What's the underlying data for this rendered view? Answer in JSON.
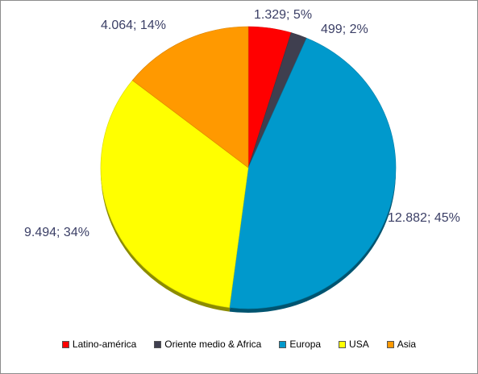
{
  "chart_data": {
    "type": "pie",
    "title": "",
    "legend_position": "bottom",
    "slices": [
      {
        "name": "Latino-américa",
        "value": 1329,
        "value_label": "1.329",
        "percent_label": "5%",
        "color": "#ff0000"
      },
      {
        "name": "Oriente medio & Africa",
        "value": 499,
        "value_label": "499",
        "percent_label": "2%",
        "color": "#3f3f4f"
      },
      {
        "name": "Europa",
        "value": 12882,
        "value_label": "12.882",
        "percent_label": "45%",
        "color": "#0099cc"
      },
      {
        "name": "USA",
        "value": 9494,
        "value_label": "9.494",
        "percent_label": "34%",
        "color": "#ffff00"
      },
      {
        "name": "Asia",
        "value": 4064,
        "value_label": "4.064",
        "percent_label": "14%",
        "color": "#ff9900"
      }
    ]
  }
}
